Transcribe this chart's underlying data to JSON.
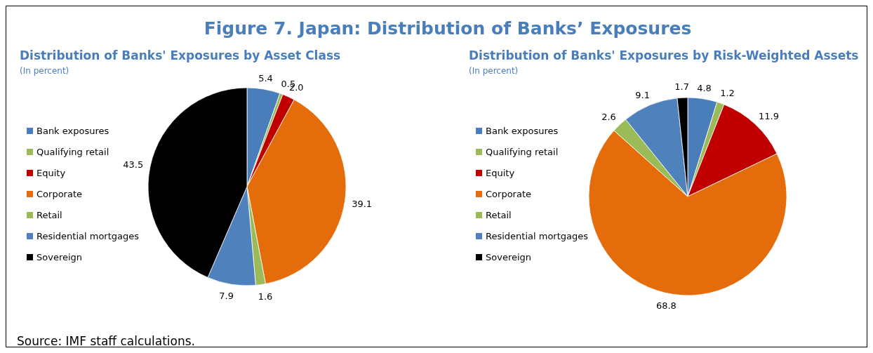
{
  "chart_data": [
    {
      "type": "pie",
      "title": "Distribution of Banks' Exposures by Asset Class",
      "subtitle": "(In percent)",
      "annotations": [
        "Figure 7. Japan: Distribution of Banks’ Exposures"
      ],
      "categories": [
        "Bank exposures",
        "Qualifying retail",
        "Equity",
        "Corporate",
        "Retail",
        "Residential mortgages",
        "Sovereign"
      ],
      "values": [
        5.4,
        0.5,
        2.0,
        39.1,
        1.6,
        7.9,
        43.5
      ],
      "colors": [
        "#4a7ebb",
        "#9bbb59",
        "#c00000",
        "#e46c0a",
        "#9bbb59",
        "#4f81bd",
        "#000000"
      ],
      "value_labels": [
        "5.4",
        "0.5",
        "2.0",
        "39.1",
        "1.6",
        "7.9",
        "43.5"
      ],
      "legend": "left"
    },
    {
      "type": "pie",
      "title": "Distribution of Banks' Exposures by Risk-Weighted Assets",
      "subtitle": "(In percent)",
      "annotations": [
        "Source: IMF staff calculations."
      ],
      "categories": [
        "Bank exposures",
        "Qualifying retail",
        "Equity",
        "Corporate",
        "Retail",
        "Residential mortgages",
        "Sovereign"
      ],
      "values": [
        4.8,
        1.2,
        11.9,
        68.8,
        2.6,
        9.1,
        1.7
      ],
      "colors": [
        "#4a7ebb",
        "#9bbb59",
        "#c00000",
        "#e46c0a",
        "#9bbb59",
        "#4f81bd",
        "#000000"
      ],
      "data_labels": true,
      "legend": "left"
    }
  ]
}
